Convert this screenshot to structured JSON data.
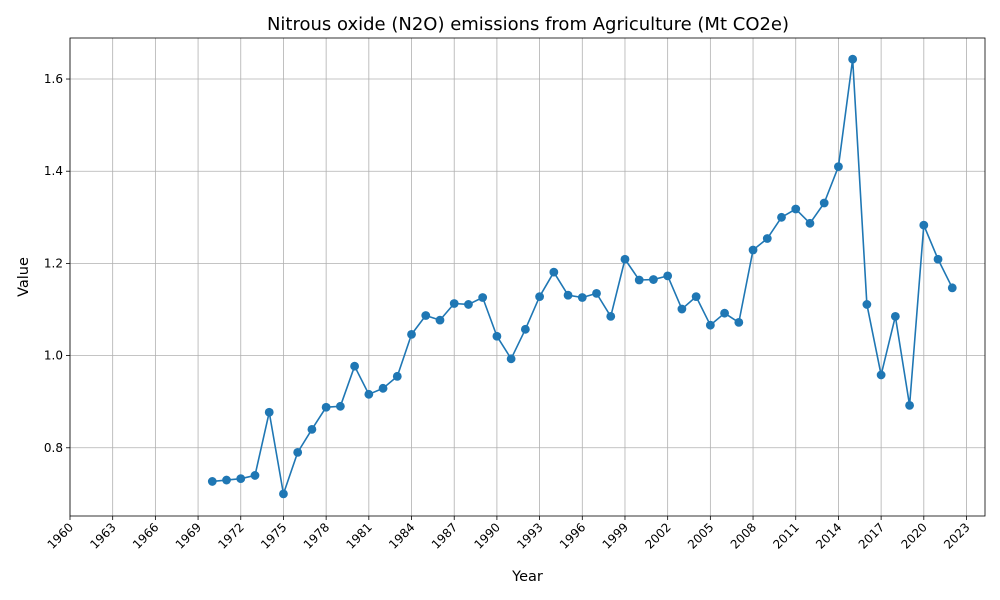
{
  "chart_data": {
    "type": "line",
    "title": "Nitrous oxide (N2O) emissions from Agriculture (Mt CO2e)",
    "xlabel": "Year",
    "ylabel": "Value",
    "xlim": [
      1960,
      2024.3
    ],
    "ylim": [
      0.652,
      1.689
    ],
    "x_ticks": [
      1960,
      1963,
      1966,
      1969,
      1972,
      1975,
      1978,
      1981,
      1984,
      1987,
      1990,
      1993,
      1996,
      1999,
      2002,
      2005,
      2008,
      2011,
      2014,
      2017,
      2020,
      2023
    ],
    "x_tick_labels": [
      "1960",
      "1963",
      "1966",
      "1969",
      "1972",
      "1975",
      "1978",
      "1981",
      "1984",
      "1987",
      "1990",
      "1993",
      "1996",
      "1999",
      "2002",
      "2005",
      "2008",
      "2011",
      "2014",
      "2017",
      "2020",
      "2023"
    ],
    "y_ticks": [
      0.8,
      1.0,
      1.2,
      1.4,
      1.6
    ],
    "y_tick_labels": [
      "0.8",
      "1.0",
      "1.2",
      "1.4",
      "1.6"
    ],
    "grid": true,
    "color": "#1f77b4",
    "marker": "circle",
    "x": [
      1970,
      1971,
      1972,
      1973,
      1974,
      1975,
      1976,
      1977,
      1978,
      1979,
      1980,
      1981,
      1982,
      1983,
      1984,
      1985,
      1986,
      1987,
      1988,
      1989,
      1990,
      1991,
      1992,
      1993,
      1994,
      1995,
      1996,
      1997,
      1998,
      1999,
      2000,
      2001,
      2002,
      2003,
      2004,
      2005,
      2006,
      2007,
      2008,
      2009,
      2010,
      2011,
      2012,
      2013,
      2014,
      2015,
      2016,
      2017,
      2018,
      2019,
      2020,
      2021,
      2022
    ],
    "y": [
      0.727,
      0.73,
      0.733,
      0.74,
      0.877,
      0.7,
      0.79,
      0.84,
      0.888,
      0.89,
      0.977,
      0.916,
      0.929,
      0.955,
      1.046,
      1.087,
      1.077,
      1.113,
      1.111,
      1.126,
      1.042,
      0.993,
      1.057,
      1.128,
      1.181,
      1.131,
      1.126,
      1.135,
      1.085,
      1.209,
      1.164,
      1.165,
      1.173,
      1.101,
      1.128,
      1.066,
      1.092,
      1.072,
      1.229,
      1.254,
      1.3,
      1.318,
      1.287,
      1.331,
      1.41,
      1.643,
      1.111,
      0.958,
      1.085,
      0.892,
      1.283,
      1.209,
      1.147
    ]
  }
}
